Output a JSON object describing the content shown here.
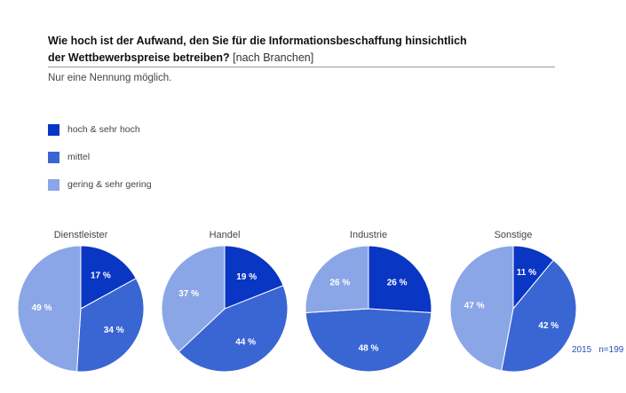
{
  "header": {
    "question_bold_line1": "Wie hoch ist der Aufwand, den Sie für die Informationsbeschaffung hinsichtlich",
    "question_bold_line2": "der Wettbewerbspreise betreiben?",
    "question_suffix": "[nach Branchen]",
    "note": "Nur eine Nennung möglich."
  },
  "legend": [
    {
      "label": "hoch & sehr hoch",
      "color": "#0a36c4"
    },
    {
      "label": "mittel",
      "color": "#3a66d4"
    },
    {
      "label": "gering & sehr gering",
      "color": "#8aa6e6"
    }
  ],
  "chart_data": {
    "type": "pie",
    "series_names": [
      "hoch & sehr hoch",
      "mittel",
      "gering & sehr gering"
    ],
    "colors": [
      "#0a36c4",
      "#3a66d4",
      "#8aa6e6"
    ],
    "value_suffix": " %",
    "pies": [
      {
        "title": "Dienstleister",
        "values": [
          17,
          34,
          49
        ]
      },
      {
        "title": "Handel",
        "values": [
          19,
          44,
          37
        ]
      },
      {
        "title": "Industrie",
        "values": [
          26,
          48,
          26
        ]
      },
      {
        "title": "Sonstige",
        "values": [
          11,
          42,
          47
        ]
      }
    ]
  },
  "footer": {
    "year": "2015",
    "sample": "n=199"
  }
}
